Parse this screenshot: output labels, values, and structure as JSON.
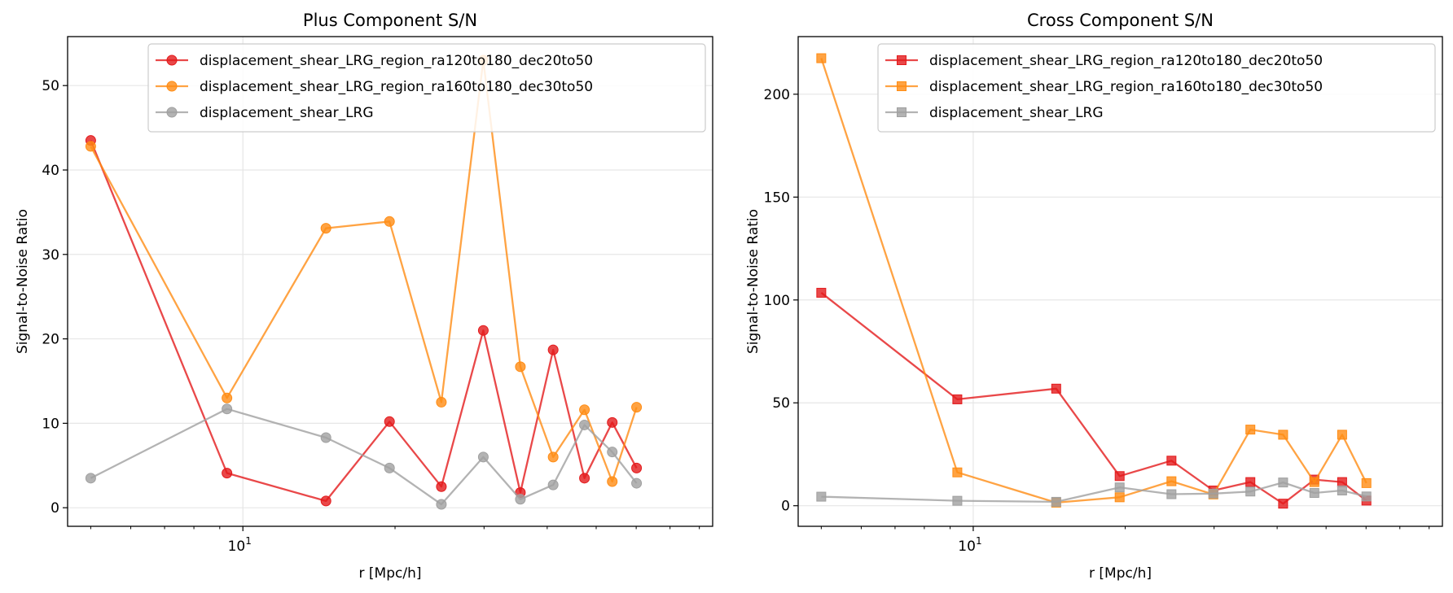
{
  "chart_data": [
    {
      "type": "line",
      "title": "Plus Component S/N",
      "xlabel": "r [Mpc/h]",
      "ylabel": "Signal-to-Noise Ratio",
      "xscale": "log",
      "xlim": [
        4.5,
        85
      ],
      "ylim": [
        -2.2,
        55.8
      ],
      "yticks": [
        0,
        10,
        20,
        30,
        40,
        50
      ],
      "xticks": [
        {
          "value": 10,
          "base": "10",
          "exp": "1"
        }
      ],
      "grid": true,
      "legend_position": "top-right",
      "x": [
        5.0,
        9.3,
        14.6,
        19.5,
        24.7,
        29.9,
        35.4,
        41.1,
        47.4,
        53.8,
        60.1
      ],
      "series": [
        {
          "name": "displacement_shear_LRG_region_ra120to180_dec20to50",
          "color": "#e31a1c",
          "marker": "circle",
          "values": [
            43.5,
            4.1,
            0.8,
            10.2,
            2.5,
            21.0,
            1.8,
            18.7,
            3.5,
            10.1,
            4.7
          ]
        },
        {
          "name": "displacement_shear_LRG_region_ra160to180_dec30to50",
          "color": "#ff8c14",
          "marker": "circle",
          "values": [
            42.8,
            13.0,
            33.1,
            33.9,
            12.5,
            53.0,
            16.7,
            6.0,
            11.6,
            3.1,
            11.9
          ]
        },
        {
          "name": "displacement_shear_LRG",
          "color": "#a0a0a0",
          "marker": "circle",
          "values": [
            3.5,
            11.7,
            8.3,
            4.7,
            0.4,
            6.0,
            1.0,
            2.7,
            9.8,
            6.6,
            2.9
          ]
        }
      ]
    },
    {
      "type": "line",
      "title": "Cross Component S/N",
      "xlabel": "r [Mpc/h]",
      "ylabel": "Signal-to-Noise Ratio",
      "xscale": "log",
      "xlim": [
        4.5,
        85
      ],
      "ylim": [
        -10.0,
        228.0
      ],
      "yticks": [
        0,
        50,
        100,
        150,
        200
      ],
      "xticks": [
        {
          "value": 10,
          "base": "10",
          "exp": "1"
        }
      ],
      "grid": true,
      "legend_position": "top-right",
      "x": [
        5.0,
        9.3,
        14.6,
        19.5,
        24.7,
        29.9,
        35.4,
        41.1,
        47.4,
        53.8,
        60.1
      ],
      "series": [
        {
          "name": "displacement_shear_LRG_region_ra120to180_dec20to50",
          "color": "#e31a1c",
          "marker": "square",
          "values": [
            103.5,
            51.7,
            56.9,
            14.4,
            21.9,
            7.4,
            11.5,
            1.0,
            12.7,
            11.5,
            2.5
          ]
        },
        {
          "name": "displacement_shear_LRG_region_ra160to180_dec30to50",
          "color": "#ff8c14",
          "marker": "square",
          "values": [
            217.5,
            16.2,
            1.5,
            4.1,
            11.9,
            5.5,
            37.0,
            34.5,
            11.5,
            34.5,
            11.0
          ]
        },
        {
          "name": "displacement_shear_LRG",
          "color": "#a0a0a0",
          "marker": "square",
          "values": [
            4.4,
            2.4,
            1.9,
            8.9,
            5.6,
            5.9,
            6.9,
            11.3,
            6.2,
            7.4,
            4.5
          ]
        }
      ]
    }
  ]
}
